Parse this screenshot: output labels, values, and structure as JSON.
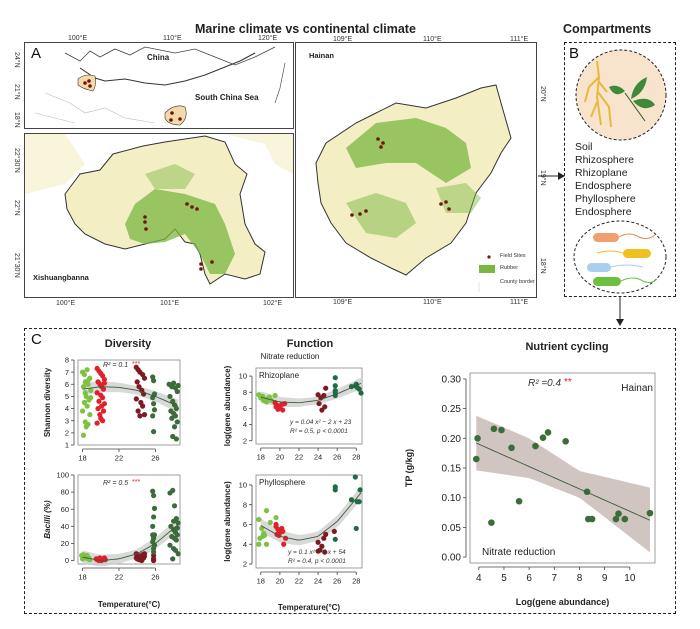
{
  "figure": {
    "section_a_title": "Marine climate vs continental climate",
    "section_b_title": "Compartments",
    "panel_a_label": "A",
    "panel_b_label": "B",
    "panel_c_label": "C"
  },
  "map_overview": {
    "labels": [
      "China",
      "South China Sea"
    ],
    "top_ticks": [
      "100°E",
      "110°E",
      "120°E"
    ],
    "left_ticks": [
      "24°N",
      "21°N",
      "18°N"
    ]
  },
  "map_xishuangbanna": {
    "name": "Xishuangbanna",
    "left_ticks": [
      "22°30'N",
      "22°N",
      "21°30'N"
    ],
    "bottom_ticks": [
      "100°E",
      "101°E",
      "102°E"
    ]
  },
  "map_hainan": {
    "name": "Hainan",
    "top_ticks": [
      "109°E",
      "110°E",
      "111°E"
    ],
    "bottom_ticks": [
      "109°E",
      "110°E",
      "111°E"
    ],
    "right_ticks": [
      "20°N",
      "19°N",
      "18°N"
    ],
    "legend": [
      {
        "label": "Field Sites",
        "color": "#7a1a12"
      },
      {
        "label": "Rubber",
        "color": "#7ab642"
      },
      {
        "label": "County border",
        "color": "#e6e0b0"
      }
    ]
  },
  "compartments": {
    "items": [
      "Soil",
      "Rhizosphere",
      "Rhizoplane",
      "Endosphere",
      "Phyllosphere",
      "Endosphere"
    ]
  },
  "colors": {
    "light_green": "#7dc242",
    "red": "#e0202a",
    "dark_red": "#7d1a24",
    "dark_green": "#3d6b3a",
    "teal_green": "#1f6b45",
    "ci_band": "#cbbfba",
    "significance_red": "#e0202a",
    "map_land": "#f3eec3",
    "map_rubber": "#7ab642"
  },
  "chart_data": [
    {
      "id": "diversity",
      "type": "scatter",
      "section_title": "Diversity",
      "title": "",
      "xlabel": "",
      "ylabel": "Shannon diversity",
      "xlim": [
        17.5,
        28.7
      ],
      "ylim": [
        1,
        8
      ],
      "xticks": [
        18,
        22,
        26
      ],
      "yticks": [
        1,
        2,
        3,
        4,
        5,
        6,
        7,
        8
      ],
      "annotation": {
        "text": "R² = 0.1",
        "stars": "***"
      },
      "series": [
        {
          "name": "site-18",
          "color": "#7dc242",
          "x": [
            18.0,
            18.2,
            18.5,
            18.8,
            18.3,
            18.6,
            18.1,
            18.9,
            18.4,
            18.7,
            18.2,
            18.5,
            18.0,
            18.8,
            18.3,
            18.6,
            18.4,
            18.1,
            18.7,
            18.9,
            18.3
          ],
          "y": [
            7.0,
            6.8,
            7.2,
            6.5,
            6.2,
            6.0,
            5.8,
            5.5,
            5.0,
            4.7,
            4.5,
            4.2,
            3.8,
            3.5,
            2.9,
            2.7,
            2.5,
            1.8,
            6.4,
            4.9,
            5.3
          ]
        },
        {
          "name": "site-20",
          "color": "#e0202a",
          "x": [
            19.6,
            19.8,
            20.0,
            20.2,
            20.4,
            19.7,
            19.9,
            20.1,
            20.3,
            19.6,
            20.0,
            20.2,
            19.8,
            20.4,
            20.1,
            19.7,
            20.3,
            19.9,
            20.0,
            20.2,
            19.6,
            20.4
          ],
          "y": [
            7.3,
            7.1,
            6.9,
            6.7,
            6.4,
            6.2,
            6.0,
            5.8,
            5.6,
            5.3,
            5.1,
            4.9,
            4.6,
            4.4,
            4.2,
            4.0,
            3.8,
            3.5,
            3.2,
            3.0,
            2.8,
            6.1
          ]
        },
        {
          "name": "site-24",
          "color": "#7d1a24",
          "x": [
            23.9,
            24.1,
            24.3,
            24.6,
            24.8,
            24.0,
            24.2,
            24.5,
            24.7,
            23.9,
            24.4,
            24.6,
            24.1,
            24.8,
            24.3
          ],
          "y": [
            7.4,
            7.2,
            7.0,
            6.8,
            6.5,
            6.2,
            5.8,
            5.5,
            5.2,
            4.8,
            4.5,
            4.2,
            3.8,
            3.5,
            3.4
          ]
        },
        {
          "name": "site-26",
          "color": "#3d6b3a",
          "x": [
            25.7,
            25.8,
            25.9,
            25.7,
            25.8,
            25.9,
            25.7,
            25.8
          ],
          "y": [
            6.6,
            6.3,
            5.2,
            4.9,
            4.4,
            3.9,
            3.4,
            2.1
          ]
        },
        {
          "name": "site-28",
          "color": "#3d6b3a",
          "x": [
            27.5,
            27.8,
            28.0,
            28.2,
            28.4,
            27.6,
            27.9,
            28.1,
            28.3,
            27.7,
            28.0,
            28.2,
            27.8,
            28.4,
            28.1,
            27.9,
            28.3,
            28.5
          ],
          "y": [
            6.0,
            5.8,
            6.1,
            5.7,
            5.4,
            5.0,
            4.6,
            4.3,
            4.0,
            3.8,
            3.6,
            3.4,
            3.2,
            2.9,
            2.5,
            1.7,
            1.5,
            5.9
          ]
        }
      ],
      "fit": {
        "x": [
          18,
          20,
          22,
          24,
          26,
          28.5
        ],
        "y": [
          5.6,
          5.8,
          5.75,
          5.5,
          5.0,
          4.2
        ]
      }
    },
    {
      "id": "bacilli",
      "type": "scatter",
      "section_title": "",
      "title": "",
      "xlabel": "Temperature(°C)",
      "ylabel": "Bacilli (%)",
      "xlim": [
        17.5,
        28.7
      ],
      "ylim": [
        -4,
        100
      ],
      "xticks": [
        18,
        22,
        26
      ],
      "yticks": [
        0,
        20,
        40,
        60,
        80,
        100
      ],
      "annotation": {
        "text": "R² = 0.5",
        "stars": "***"
      },
      "series": [
        {
          "name": "site-18",
          "color": "#7dc242",
          "x": [
            17.9,
            18.1,
            18.3,
            18.5,
            18.7,
            18.0,
            18.2,
            18.4,
            18.6,
            18.8,
            18.1,
            18.5
          ],
          "y": [
            6,
            5,
            4,
            5,
            3,
            2,
            4,
            3,
            2,
            1,
            7,
            6
          ]
        },
        {
          "name": "site-20",
          "color": "#e0202a",
          "x": [
            19.5,
            19.7,
            19.9,
            20.1,
            20.3,
            20.5,
            19.8,
            20.2,
            20.4,
            19.6
          ],
          "y": [
            2,
            1,
            3,
            0,
            2,
            1,
            0,
            2,
            3,
            1
          ]
        },
        {
          "name": "site-24",
          "color": "#7d1a24",
          "x": [
            23.9,
            24.1,
            24.3,
            24.6,
            24.8,
            24.0,
            24.2,
            24.7,
            24.5,
            23.9,
            24.8
          ],
          "y": [
            8,
            6,
            4,
            7,
            5,
            2,
            1,
            3,
            0,
            3,
            8
          ]
        },
        {
          "name": "site-26",
          "color": "#7d1a24",
          "x": [
            25.8,
            25.8,
            25.8
          ],
          "y": [
            6,
            2,
            0
          ]
        },
        {
          "name": "site-26g",
          "color": "#3d6b3a",
          "x": [
            25.7,
            25.8,
            25.9,
            25.8,
            25.7,
            25.9,
            25.8,
            25.7,
            25.9,
            25.8,
            25.8,
            25.7
          ],
          "y": [
            81,
            76,
            61,
            51,
            40,
            30,
            26,
            22,
            18,
            14,
            10,
            30
          ]
        },
        {
          "name": "site-28",
          "color": "#3d6b3a",
          "x": [
            27.6,
            27.9,
            28.1,
            28.3,
            28.5,
            27.7,
            28.0,
            28.2,
            28.4,
            27.8,
            28.1,
            28.3,
            27.6,
            28.0,
            28.2,
            28.5,
            27.9,
            28.4,
            28.0
          ],
          "y": [
            79,
            82,
            64,
            49,
            44,
            40,
            36,
            33,
            30,
            28,
            26,
            24,
            18,
            14,
            12,
            8,
            2,
            38,
            46
          ]
        }
      ],
      "fit": {
        "x": [
          18,
          20,
          22,
          24,
          26,
          28.5
        ],
        "y": [
          4,
          0,
          2,
          8,
          20,
          42
        ]
      }
    },
    {
      "id": "rhizoplane",
      "type": "scatter",
      "section_title": "Function",
      "subtitle": "Nitrate reduction",
      "title": "Rhizoplane",
      "xlabel": "",
      "ylabel": "log(gene abundance)",
      "xlim": [
        17.5,
        28.6
      ],
      "ylim": [
        1.6,
        11
      ],
      "xticks": [
        18,
        20,
        22,
        24,
        26,
        28
      ],
      "yticks": [
        2,
        4,
        6,
        8,
        10
      ],
      "annotation": {
        "equation": "y = 0.04 x² − 2 x + 23",
        "stats": "R² = 0.5,  p < 0.0001"
      },
      "series": [
        {
          "name": "site-18",
          "color": "#7dc242",
          "x": [
            17.8,
            18.0,
            18.3,
            18.5,
            18.7,
            18.9,
            19.1,
            18.2,
            18.6,
            19.5
          ],
          "y": [
            7.7,
            7.3,
            7.0,
            6.9,
            7.2,
            7.4,
            7.0,
            7.5,
            6.8,
            7.6
          ]
        },
        {
          "name": "site-20",
          "color": "#e0202a",
          "x": [
            19.5,
            19.7,
            19.9,
            20.2,
            20.5,
            19.6,
            19.8,
            20.0,
            20.3
          ],
          "y": [
            6.7,
            6.4,
            6.0,
            6.5,
            6.6,
            6.2,
            5.9,
            6.1,
            5.8
          ]
        },
        {
          "name": "site-24",
          "color": "#7d1a24",
          "x": [
            24.0,
            24.3,
            24.8,
            24.6,
            24.1,
            24.7,
            24.4
          ],
          "y": [
            7.7,
            7.3,
            8.5,
            7.6,
            6.6,
            6.2,
            5.8
          ]
        },
        {
          "name": "site-26",
          "color": "#1f6b45",
          "x": [
            25.8,
            25.8,
            25.8,
            25.8,
            25.8
          ],
          "y": [
            9.8,
            8.8,
            8.2,
            7.6,
            8.0
          ]
        },
        {
          "name": "site-28",
          "color": "#1f6b45",
          "x": [
            27.5,
            27.9,
            28.1,
            28.3,
            28.5,
            28.0
          ],
          "y": [
            8.7,
            8.8,
            8.6,
            8.4,
            7.9,
            9.0
          ]
        }
      ],
      "fit": {
        "x": [
          18,
          20,
          22,
          24,
          26,
          28.5
        ],
        "y": [
          7.4,
          6.8,
          6.7,
          7.0,
          7.8,
          9.1
        ]
      }
    },
    {
      "id": "phyllosphere",
      "type": "scatter",
      "section_title": "",
      "title": "Phyllosphere",
      "xlabel": "Temperature(°C)",
      "ylabel": "log(gene abundance)",
      "xlim": [
        17.5,
        28.6
      ],
      "ylim": [
        1.6,
        11
      ],
      "xticks": [
        18,
        20,
        22,
        24,
        26,
        28
      ],
      "yticks": [
        2,
        4,
        6,
        8,
        10
      ],
      "annotation": {
        "equation": "y = 0.1 x² − 5 x + 54",
        "stats": "R² = 0.4,  p < 0.0001"
      },
      "series": [
        {
          "name": "site-18",
          "color": "#7dc242",
          "x": [
            17.8,
            18.1,
            18.4,
            18.6,
            19.0,
            17.9,
            18.3,
            18.6,
            19.6,
            18.2
          ],
          "y": [
            6.5,
            5.6,
            4.9,
            7.4,
            6.2,
            4.6,
            5.1,
            4.0,
            6.7,
            4.8
          ]
        },
        {
          "name": "site-18b",
          "color": "#7dc242",
          "x": [
            17.8
          ],
          "y": [
            4.0
          ]
        },
        {
          "name": "site-20",
          "color": "#e0202a",
          "x": [
            19.6,
            19.8,
            20.0,
            20.2,
            19.7,
            19.9,
            20.4,
            20.6,
            20.3,
            19.6
          ],
          "y": [
            5.8,
            5.5,
            5.2,
            5.6,
            5.0,
            4.9,
            4.0,
            4.6,
            5.3,
            6.0
          ]
        },
        {
          "name": "site-24",
          "color": "#7d1a24",
          "x": [
            24.0,
            24.2,
            24.6,
            24.8,
            24.4,
            24.0,
            24.7,
            25.7
          ],
          "y": [
            4.2,
            3.4,
            4.6,
            5.0,
            3.8,
            3.3,
            3.2,
            5.3
          ]
        },
        {
          "name": "site-26",
          "color": "#1f6b45",
          "x": [
            25.8,
            25.8,
            25.8
          ],
          "y": [
            9.8,
            9.5,
            4.5
          ]
        },
        {
          "name": "site-28",
          "color": "#1f6b45",
          "x": [
            27.5,
            27.9,
            28.1,
            28.3,
            28.0,
            28.4
          ],
          "y": [
            8.5,
            10.8,
            8.3,
            8.3,
            5.6,
            9.5
          ]
        }
      ],
      "fit": {
        "x": [
          18,
          20,
          22,
          24,
          26,
          28.5
        ],
        "y": [
          5.9,
          4.8,
          4.4,
          4.8,
          6.3,
          9.2
        ]
      }
    },
    {
      "id": "nutrient-cycling",
      "type": "scatter",
      "section_title": "Nutrient cycling",
      "title": "",
      "xlabel": "Log(gene abundance)",
      "ylabel": "TP (g/kg)",
      "xlim": [
        3.65,
        11.0
      ],
      "ylim": [
        -0.01,
        0.31
      ],
      "xticks": [
        4,
        5,
        6,
        7,
        8,
        9,
        10
      ],
      "yticks": [
        0.0,
        0.05,
        0.1,
        0.15,
        0.2,
        0.25,
        0.3
      ],
      "ytick_labels": [
        "0.00",
        "0.05",
        "0.10",
        "0.15",
        "0.20",
        "0.25",
        "0.30"
      ],
      "annotation": {
        "text": "R² =0.4",
        "stars": "**",
        "corner_label": "Hainan",
        "bottom_label": "Nitrate reduction"
      },
      "series": [
        {
          "name": "samples",
          "color": "#3d6b3a",
          "x": [
            3.9,
            3.95,
            4.5,
            4.6,
            4.9,
            5.3,
            5.6,
            6.25,
            6.55,
            6.75,
            7.45,
            8.3,
            8.35,
            8.5,
            9.45,
            9.55,
            9.8,
            10.8
          ],
          "y": [
            0.165,
            0.2,
            0.058,
            0.216,
            0.214,
            0.184,
            0.094,
            0.187,
            0.201,
            0.21,
            0.195,
            0.11,
            0.064,
            0.064,
            0.064,
            0.073,
            0.064,
            0.074
          ]
        }
      ],
      "fit": {
        "x": [
          3.9,
          10.8
        ],
        "y": [
          0.192,
          0.062
        ]
      },
      "ci": {
        "x": [
          3.9,
          6.0,
          8.0,
          10.8
        ],
        "upper": [
          0.238,
          0.2,
          0.145,
          0.117
        ],
        "lower": [
          0.146,
          0.133,
          0.1,
          0.008
        ]
      }
    }
  ]
}
